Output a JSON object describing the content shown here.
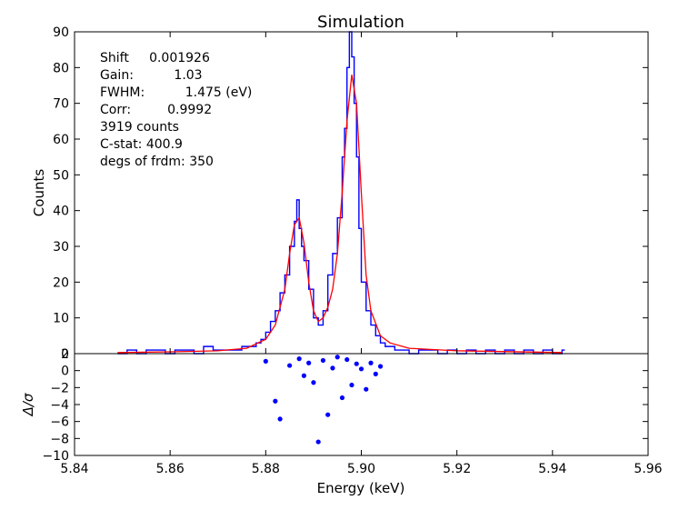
{
  "chart_data": {
    "type": "line",
    "title": "Simulation",
    "xlabel": "Energy (keV)",
    "xlim": [
      5.84,
      5.96
    ],
    "xticks": [
      "5.84",
      "5.86",
      "5.88",
      "5.90",
      "5.92",
      "5.94",
      "5.96"
    ],
    "panels": [
      {
        "name": "counts",
        "ylabel": "Counts",
        "ylim": [
          0,
          90
        ],
        "yticks": [
          "0",
          "10",
          "20",
          "30",
          "40",
          "50",
          "60",
          "70",
          "80",
          "90"
        ],
        "annotations": [
          "Shift     0.001926",
          "Gain:          1.03",
          "FWHM:          1.475 (eV)",
          "Corr:         0.9992",
          "3919 counts",
          "C-stat: 400.9",
          "degs of frdm: 350"
        ],
        "series": [
          {
            "name": "data",
            "style": "step",
            "color": "#0000ff",
            "x": [
              5.849,
              5.851,
              5.853,
              5.855,
              5.857,
              5.859,
              5.861,
              5.863,
              5.865,
              5.867,
              5.869,
              5.871,
              5.873,
              5.875,
              5.877,
              5.878,
              5.879,
              5.88,
              5.881,
              5.882,
              5.883,
              5.884,
              5.885,
              5.886,
              5.8865,
              5.887,
              5.8875,
              5.888,
              5.889,
              5.89,
              5.891,
              5.892,
              5.893,
              5.894,
              5.895,
              5.896,
              5.8965,
              5.897,
              5.8975,
              5.898,
              5.8985,
              5.899,
              5.8995,
              5.9,
              5.901,
              5.902,
              5.903,
              5.904,
              5.905,
              5.906,
              5.907,
              5.908,
              5.91,
              5.912,
              5.914,
              5.916,
              5.918,
              5.92,
              5.922,
              5.924,
              5.926,
              5.928,
              5.93,
              5.932,
              5.934,
              5.936,
              5.938,
              5.94,
              5.942
            ],
            "y": [
              0,
              1,
              0,
              1,
              1,
              0,
              1,
              1,
              0,
              2,
              1,
              1,
              1,
              2,
              2,
              3,
              4,
              6,
              9,
              12,
              17,
              22,
              30,
              37,
              43,
              35,
              30,
              26,
              18,
              10,
              8,
              12,
              22,
              28,
              38,
              55,
              63,
              80,
              90,
              83,
              70,
              55,
              35,
              20,
              12,
              8,
              5,
              3,
              2,
              2,
              1,
              1,
              0,
              1,
              1,
              0,
              1,
              0,
              1,
              0,
              1,
              0,
              1,
              0,
              1,
              0,
              1,
              0,
              1
            ]
          },
          {
            "name": "model",
            "style": "line",
            "color": "#ff0000",
            "x": [
              5.849,
              5.86,
              5.87,
              5.876,
              5.88,
              5.882,
              5.884,
              5.885,
              5.886,
              5.887,
              5.888,
              5.889,
              5.89,
              5.891,
              5.892,
              5.893,
              5.894,
              5.895,
              5.896,
              5.897,
              5.898,
              5.899,
              5.9,
              5.901,
              5.902,
              5.904,
              5.906,
              5.91,
              5.92,
              5.942
            ],
            "y": [
              0.3,
              0.5,
              0.8,
              1.5,
              4,
              8,
              18,
              28,
              36,
              38,
              31,
              20,
              12,
              9,
              10,
              13,
              18,
              28,
              45,
              65,
              78,
              70,
              45,
              22,
              12,
              5,
              3,
              1.5,
              0.8,
              0.3
            ]
          }
        ]
      },
      {
        "name": "residuals",
        "ylabel": "Δ/σ",
        "ylim": [
          -10,
          2
        ],
        "yticks": [
          "−10",
          "−8",
          "−6",
          "−4",
          "−2",
          "0",
          "2"
        ],
        "series": [
          {
            "name": "residuals",
            "style": "scatter",
            "color": "#0000ff",
            "x": [
              5.88,
              5.882,
              5.883,
              5.885,
              5.887,
              5.888,
              5.889,
              5.89,
              5.891,
              5.892,
              5.893,
              5.894,
              5.895,
              5.896,
              5.897,
              5.898,
              5.899,
              5.9,
              5.901,
              5.902,
              5.903,
              5.904
            ],
            "y": [
              1.1,
              -3.6,
              -5.7,
              0.6,
              1.4,
              -0.6,
              0.9,
              -1.4,
              -8.4,
              1.2,
              -5.2,
              0.3,
              1.6,
              -3.2,
              1.3,
              -1.7,
              0.8,
              0.2,
              -2.2,
              0.9,
              -0.4,
              0.5
            ]
          }
        ]
      }
    ]
  }
}
